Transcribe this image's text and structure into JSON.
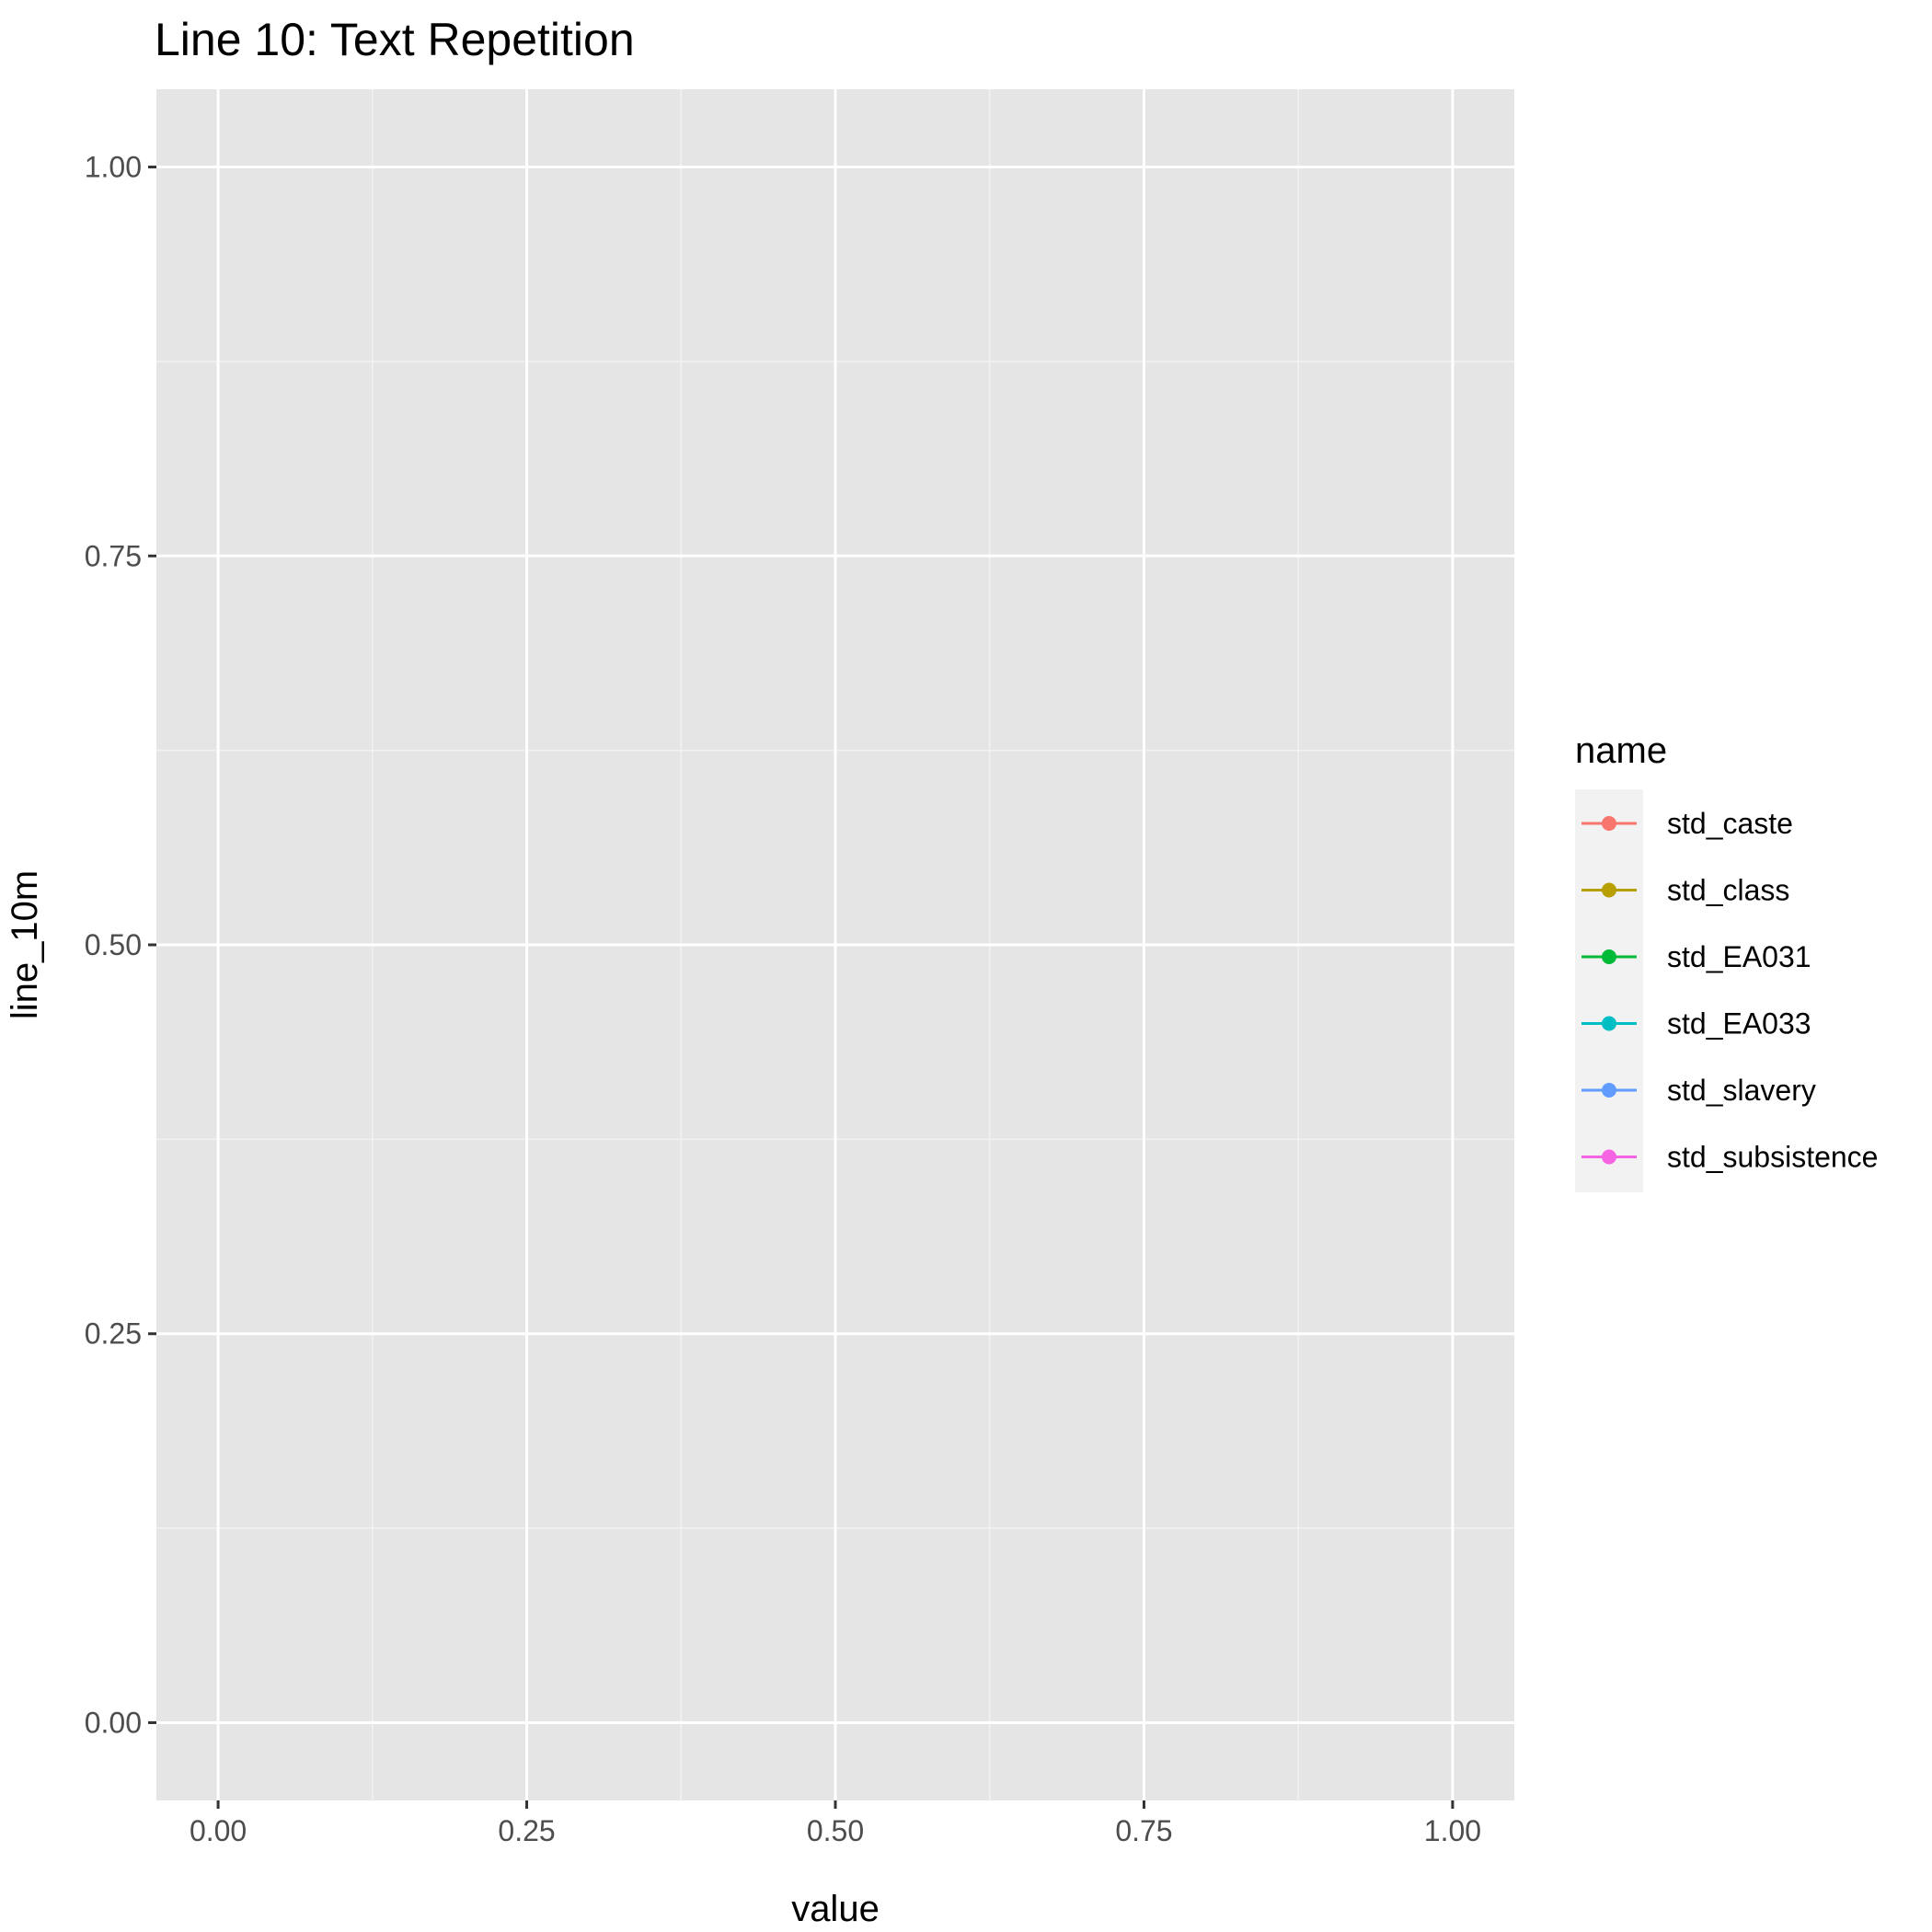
{
  "chart_data": {
    "type": "line",
    "title": "Line 10: Text Repetition",
    "xlabel": "value",
    "ylabel": "line_10m",
    "xlim": [
      -0.05,
      1.05
    ],
    "ylim": [
      -0.05,
      1.05
    ],
    "x_ticks": [
      0,
      0.25,
      0.5,
      0.75,
      1
    ],
    "x_tick_labels": [
      "0.00",
      "0.25",
      "0.50",
      "0.75",
      "1.00"
    ],
    "y_ticks": [
      0,
      0.25,
      0.5,
      0.75,
      1
    ],
    "y_tick_labels": [
      "0.00",
      "0.25",
      "0.50",
      "0.75",
      "1.00"
    ],
    "grid": true,
    "panel_background": "#e5e5e5",
    "legend": {
      "title": "name",
      "placement": "right"
    },
    "series": [
      {
        "name": "std_caste",
        "color": "#f8766d",
        "points": []
      },
      {
        "name": "std_class",
        "color": "#b79f00",
        "points": []
      },
      {
        "name": "std_EA031",
        "color": "#00ba38",
        "points": []
      },
      {
        "name": "std_EA033",
        "color": "#00bfc4",
        "points": []
      },
      {
        "name": "std_slavery",
        "color": "#619cff",
        "points": []
      },
      {
        "name": "std_subsistence",
        "color": "#f564e3",
        "points": []
      }
    ]
  }
}
